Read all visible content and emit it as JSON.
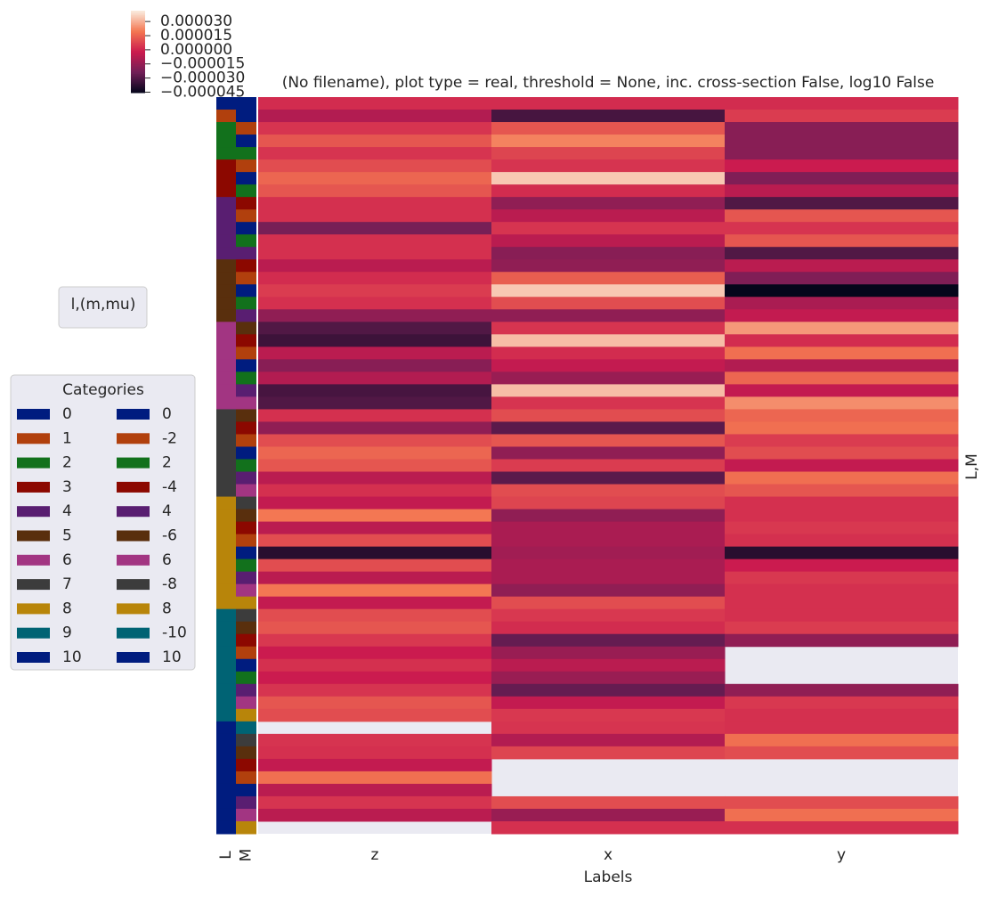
{
  "chart_data": {
    "type": "heatmap",
    "title": "(No filename), plot type = real, threshold = None, inc. cross-section False, log10 False",
    "xlabel": "Labels",
    "ylabel": "L,M",
    "columns": [
      "z",
      "x",
      "y"
    ],
    "values": [
      [
        2e-06,
        2e-06,
        2e-06
      ],
      [
        -8e-06,
        -3.2e-05,
        6e-06
      ],
      [
        4e-06,
        1.2e-05,
        -1.8e-05
      ],
      [
        1.2e-05,
        2.2e-05,
        -1.8e-05
      ],
      [
        4e-06,
        8e-06,
        -1.8e-05
      ],
      [
        1e-05,
        4e-06,
        -2e-06
      ],
      [
        1.6e-05,
        3.5e-05,
        -2e-05
      ],
      [
        1.2e-05,
        2e-06,
        -6e-06
      ],
      [
        3e-06,
        -1.6e-05,
        -3e-05
      ],
      [
        3e-06,
        -6e-06,
        1.2e-05
      ],
      [
        -2.2e-05,
        4e-06,
        4e-06
      ],
      [
        3e-06,
        -6e-06,
        1.2e-05
      ],
      [
        3e-06,
        -1.8e-05,
        -3e-05
      ],
      [
        -6e-06,
        -1.6e-05,
        -6e-06
      ],
      [
        2e-06,
        1.4e-05,
        -2e-05
      ],
      [
        6e-06,
        3.5e-05,
        -4.5e-05
      ],
      [
        3e-06,
        1e-05,
        -1e-05
      ],
      [
        -1.6e-05,
        -1.6e-05,
        -4e-06
      ],
      [
        -3e-05,
        4e-06,
        2.6e-05
      ],
      [
        -3.4e-05,
        3.3e-05,
        2e-06
      ],
      [
        -6e-06,
        2e-06,
        1.8e-05
      ],
      [
        -1.8e-05,
        -4e-06,
        -8e-06
      ],
      [
        -8e-06,
        -1.4e-05,
        1.6e-05
      ],
      [
        -3.2e-05,
        3.3e-05,
        -4e-06
      ],
      [
        -3e-05,
        4e-06,
        2.4e-05
      ],
      [
        3e-06,
        1e-05,
        1.6e-05
      ],
      [
        -1.6e-05,
        -2.8e-05,
        1.8e-05
      ],
      [
        1e-05,
        1.2e-05,
        6e-06
      ],
      [
        1.6e-05,
        -1.6e-05,
        1e-05
      ],
      [
        1.2e-05,
        6e-06,
        -4e-06
      ],
      [
        -6e-06,
        -2.8e-05,
        1.8e-05
      ],
      [
        3e-06,
        1e-05,
        1.2e-05
      ],
      [
        -4e-06,
        8e-06,
        3e-06
      ],
      [
        2e-05,
        -1.6e-05,
        3e-06
      ],
      [
        -6e-06,
        -1e-05,
        5e-06
      ],
      [
        1e-05,
        -1e-05,
        3e-06
      ],
      [
        -3.8e-05,
        -1.2e-05,
        -3.8e-05
      ],
      [
        1e-05,
        -1e-05,
        -2e-06
      ],
      [
        -6e-06,
        -1e-05,
        5e-06
      ],
      [
        2e-05,
        -1.6e-05,
        3e-06
      ],
      [
        -4e-06,
        1e-05,
        3e-06
      ],
      [
        1e-05,
        5e-06,
        3e-06
      ],
      [
        1.2e-05,
        2e-06,
        6e-06
      ],
      [
        5e-06,
        -2.6e-05,
        -1.6e-05
      ],
      [
        -2e-06,
        -1.4e-05,
        null
      ],
      [
        3e-06,
        -6e-06,
        null
      ],
      [
        -2e-06,
        -1.4e-05,
        null
      ],
      [
        4e-06,
        -2.6e-05,
        -1.6e-05
      ],
      [
        1.2e-05,
        -4e-06,
        5e-06
      ],
      [
        1e-05,
        5e-06,
        3e-06
      ],
      [
        null,
        4e-06,
        3e-06
      ],
      [
        4e-06,
        -8e-06,
        1.8e-05
      ],
      [
        3e-06,
        8e-06,
        1e-05
      ],
      [
        -4e-06,
        null,
        null
      ],
      [
        1.8e-05,
        null,
        null
      ],
      [
        -6e-06,
        null,
        null
      ],
      [
        4e-06,
        1e-05,
        1e-05
      ],
      [
        -6e-06,
        -1.4e-05,
        1.8e-05
      ],
      [
        null,
        3e-06,
        3e-06
      ]
    ],
    "clim": [
      -4.55e-05,
      4.15e-05
    ],
    "cticks": [
      {
        "value": 3e-05,
        "label": "0.000030"
      },
      {
        "value": 1.5e-05,
        "label": "0.000015"
      },
      {
        "value": 0,
        "label": "0.000000"
      },
      {
        "value": -1.5e-05,
        "label": "−0.000015"
      },
      {
        "value": -3e-05,
        "label": "−0.000030"
      },
      {
        "value": -4.5e-05,
        "label": "−0.000045"
      }
    ],
    "cmap": [
      "#03051a",
      "#701f57",
      "#cb1b4f",
      "#f37651",
      "#faebdd"
    ],
    "row_colors": {
      "labels": [
        "L",
        "M"
      ],
      "L": [
        0,
        1,
        2,
        2,
        2,
        3,
        3,
        3,
        4,
        4,
        4,
        4,
        4,
        5,
        5,
        5,
        5,
        5,
        6,
        6,
        6,
        6,
        6,
        6,
        6,
        7,
        7,
        7,
        7,
        7,
        7,
        7,
        8,
        8,
        8,
        8,
        8,
        8,
        8,
        8,
        8,
        9,
        9,
        9,
        9,
        9,
        9,
        9,
        9,
        9,
        10,
        10,
        10,
        10,
        10,
        10,
        10,
        10,
        10
      ],
      "M": [
        0,
        0,
        -2,
        0,
        2,
        -2,
        0,
        2,
        -4,
        -2,
        0,
        2,
        4,
        -4,
        -2,
        0,
        2,
        4,
        -6,
        -4,
        -2,
        0,
        2,
        4,
        6,
        -6,
        -4,
        -2,
        0,
        2,
        4,
        6,
        -8,
        -6,
        -4,
        -2,
        0,
        2,
        4,
        6,
        8,
        -8,
        -6,
        -4,
        -2,
        0,
        2,
        4,
        6,
        8,
        -10,
        -8,
        -6,
        -4,
        -2,
        0,
        4,
        6,
        8
      ]
    },
    "legend_small": {
      "title": "l,(m,mu)"
    },
    "legend": {
      "title": "Categories",
      "L": [
        {
          "label": 0,
          "color": "#001c7f"
        },
        {
          "label": 1,
          "color": "#b1400d"
        },
        {
          "label": 2,
          "color": "#12711c"
        },
        {
          "label": 3,
          "color": "#8c0800"
        },
        {
          "label": 4,
          "color": "#591e71"
        },
        {
          "label": 5,
          "color": "#592f0d"
        },
        {
          "label": 6,
          "color": "#a23582"
        },
        {
          "label": 7,
          "color": "#3c3c3c"
        },
        {
          "label": 8,
          "color": "#b8850a"
        },
        {
          "label": 9,
          "color": "#006374"
        },
        {
          "label": 10,
          "color": "#001c7f"
        }
      ],
      "M": [
        {
          "label": 0,
          "color": "#001c7f"
        },
        {
          "label": -2,
          "color": "#b1400d"
        },
        {
          "label": 2,
          "color": "#12711c"
        },
        {
          "label": -4,
          "color": "#8c0800"
        },
        {
          "label": 4,
          "color": "#591e71"
        },
        {
          "label": -6,
          "color": "#592f0d"
        },
        {
          "label": 6,
          "color": "#a23582"
        },
        {
          "label": -8,
          "color": "#3c3c3c"
        },
        {
          "label": 8,
          "color": "#b8850a"
        },
        {
          "label": -10,
          "color": "#006374"
        },
        {
          "label": 10,
          "color": "#001c7f"
        }
      ]
    }
  }
}
